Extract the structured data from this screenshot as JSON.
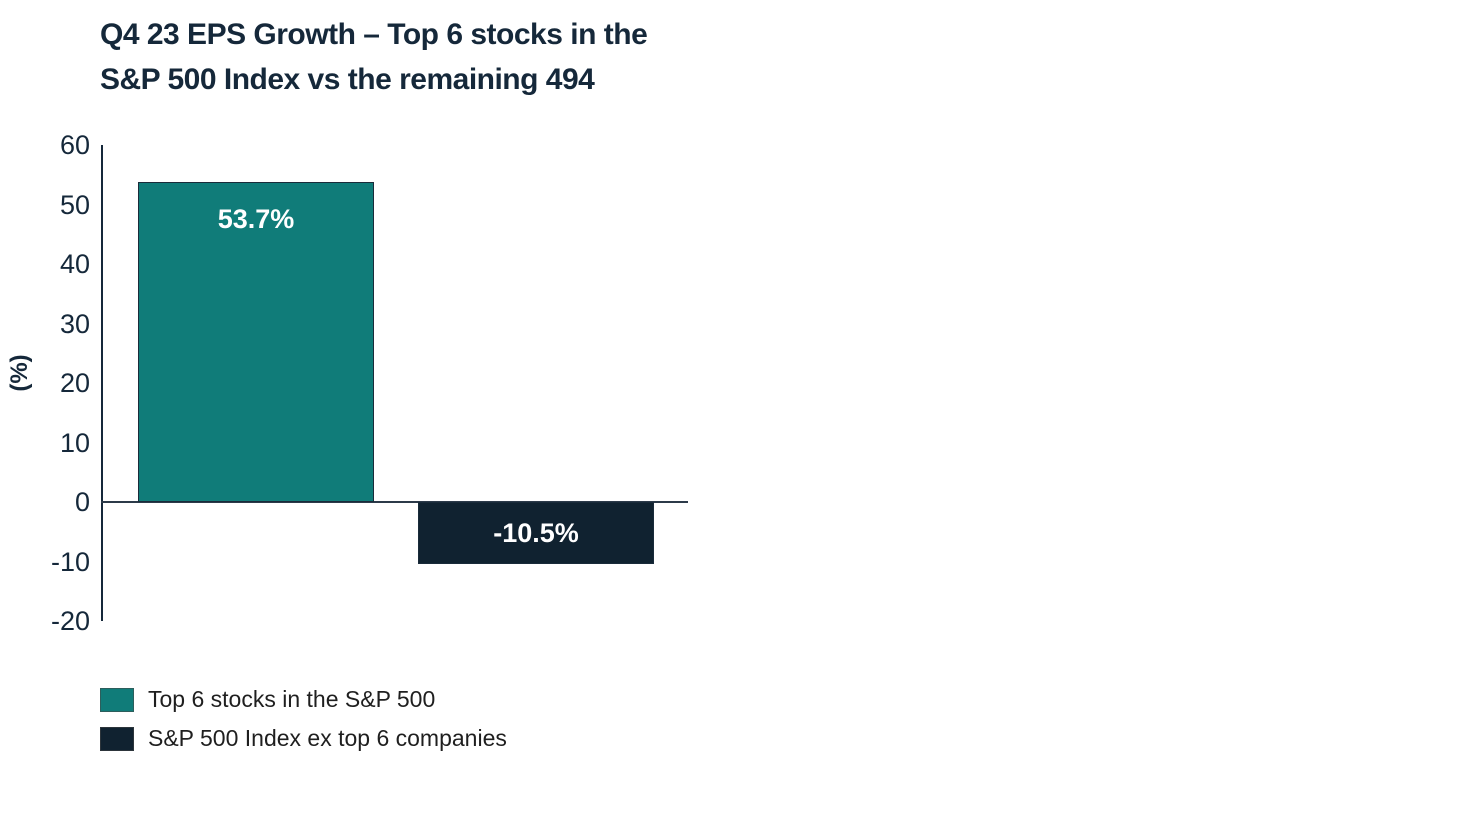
{
  "title": {
    "line1": "Q4 23 EPS Growth – Top 6 stocks in the",
    "line2": "S&P 500 Index vs the remaining 494"
  },
  "chart_data": {
    "type": "bar",
    "title": "Q4 23 EPS Growth – Top 6 stocks in the S&P 500 Index vs the remaining 494",
    "xlabel": "",
    "ylabel": "(%)",
    "ylim": [
      -20,
      60
    ],
    "yticks": [
      60,
      50,
      40,
      30,
      20,
      10,
      0,
      -10,
      -20
    ],
    "grid": false,
    "legend_position": "bottom-left",
    "categories": [
      "Top 6 stocks in the S&P 500",
      "S&P 500 Index ex top 6 companies"
    ],
    "series": [
      {
        "name": "Top 6 stocks in the S&P 500",
        "value": 53.7,
        "data_label": "53.7%",
        "color": "#107c79"
      },
      {
        "name": "S&P 500 Index ex top 6 companies",
        "value": -10.5,
        "data_label": "-10.5%",
        "color": "#102230"
      }
    ]
  },
  "colors": {
    "title_text": "#15283a",
    "axis": "#15283a",
    "tick_text": "#15283a",
    "bar_label_text": "#ffffff",
    "legend_text": "#1f1f1f",
    "background": "#ffffff",
    "teal": "#107c79",
    "navy": "#102230"
  }
}
